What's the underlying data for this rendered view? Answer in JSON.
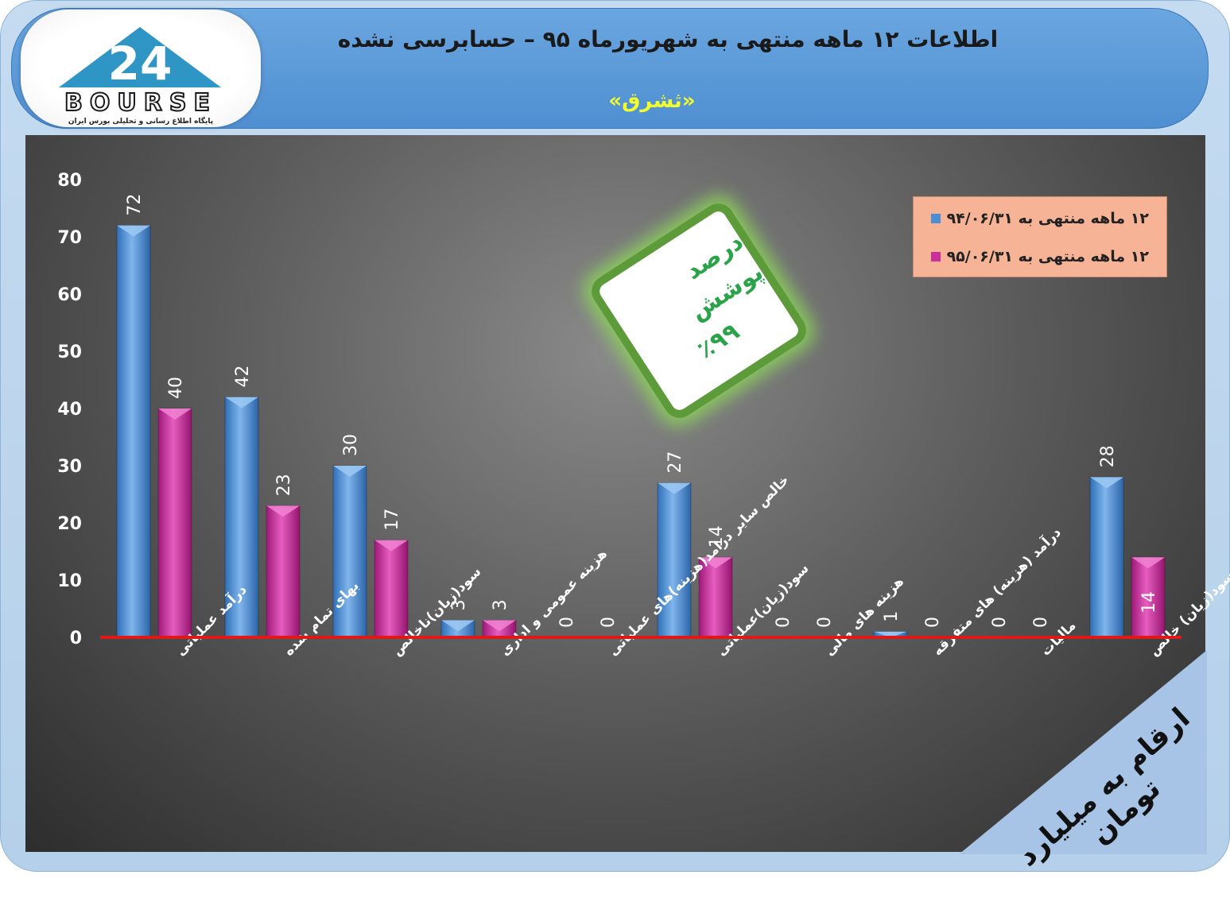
{
  "header": {
    "title": "اطلاعات ۱۲  ماهه منتهی به شهریورماه ۹۵ – حسابرسی نشده",
    "subtitle": "«ثشرق»"
  },
  "logo": {
    "word": "BOURSE",
    "tagline": "پایگاه اطلاع رسانی و تحلیلی بورس ایران",
    "mark": "24"
  },
  "badge": {
    "line1": "درصد پوشش",
    "line2": "٪۹۹"
  },
  "units_note": "ارقام به میلیارد تومان",
  "colors": {
    "series_1": "#4a8fd6",
    "series_2": "#cc2f9c",
    "baseline": "#e01818",
    "header": "#5b9bd9",
    "badge_green": "#2aa34a"
  },
  "chart_data": {
    "type": "bar",
    "categories": [
      "درآمد عملیاتی",
      "بهای تمام شده",
      "سود(زیان)ناخالص",
      "هزینه عمومی و اداری",
      "خالص سایر درامد(هزینه)های عملیاتی",
      "سود(زیان)عملیاتی",
      "هزینه های مالی",
      "درآمد (هزینه) های متفرقه",
      "مالیات",
      "سود(زیان) خالص"
    ],
    "series": [
      {
        "name": "۱۲ ماهه منتهی به ۹۴/۰۶/۳۱",
        "values": [
          72,
          42,
          30,
          3,
          0,
          27,
          0,
          1,
          0,
          28
        ]
      },
      {
        "name": "۱۲ ماهه منتهی به ۹۵/۰۶/۳۱",
        "values": [
          40,
          23,
          17,
          3,
          0,
          14,
          0,
          0,
          0,
          14
        ]
      }
    ],
    "ylim": [
      0,
      80
    ],
    "yticks": [
      0,
      10,
      20,
      30,
      40,
      50,
      60,
      70,
      80
    ],
    "legend": "top-right",
    "grid": false
  }
}
